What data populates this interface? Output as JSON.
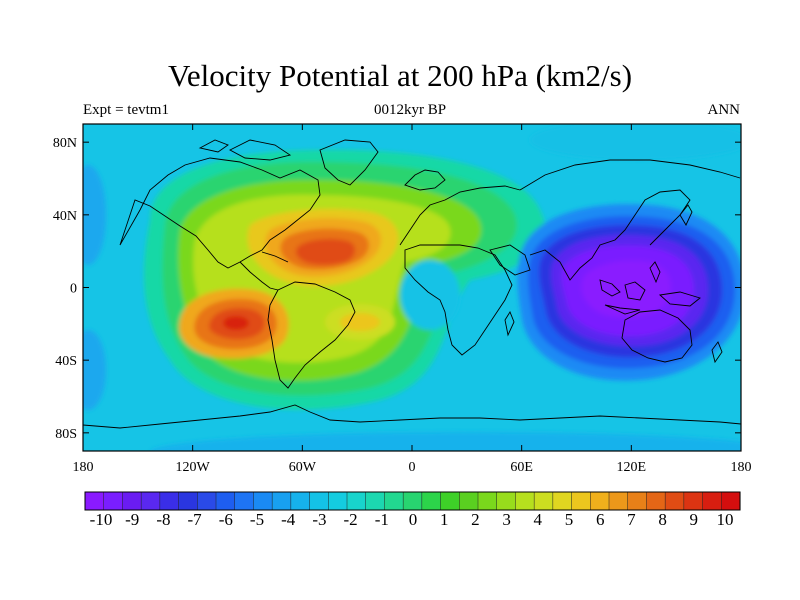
{
  "title": "Velocity Potential at 200 hPa (km2/s)",
  "subtitle_left": "Expt = tevtm1",
  "subtitle_center": "0012kyr BP",
  "subtitle_right": "ANN",
  "lat_ticks": [
    {
      "value": 80,
      "label": "80N"
    },
    {
      "value": 40,
      "label": "40N"
    },
    {
      "value": 0,
      "label": "0"
    },
    {
      "value": -40,
      "label": "40S"
    },
    {
      "value": -80,
      "label": "80S"
    }
  ],
  "lon_ticks": [
    {
      "value": -180,
      "label": "180"
    },
    {
      "value": -120,
      "label": "120W"
    },
    {
      "value": -60,
      "label": "60W"
    },
    {
      "value": 0,
      "label": "0"
    },
    {
      "value": 60,
      "label": "60E"
    },
    {
      "value": 120,
      "label": "120E"
    },
    {
      "value": 180,
      "label": "180"
    }
  ],
  "colorbar": {
    "labels": [
      "-10",
      "-9",
      "-8",
      "-7",
      "-6",
      "-5",
      "-4",
      "-3",
      "-2",
      "-1",
      "0",
      "1",
      "2",
      "3",
      "4",
      "5",
      "6",
      "7",
      "8",
      "9",
      "10"
    ],
    "colors": [
      "#8a1aff",
      "#7a1eff",
      "#6a1cf2",
      "#5a28f0",
      "#3a2ee8",
      "#2a36e0",
      "#2a4ae8",
      "#1e5ef0",
      "#1e74f4",
      "#1a8af4",
      "#18a0f0",
      "#16b2ec",
      "#14c2e6",
      "#14cce0",
      "#18d4cc",
      "#1cd8b0",
      "#22d890",
      "#28d470",
      "#2cd44a",
      "#3ed028",
      "#5ad020",
      "#7ad81c",
      "#98dc1c",
      "#b6e01e",
      "#ccde20",
      "#e0d620",
      "#ecc61e",
      "#f0b01c",
      "#ec981a",
      "#e88018",
      "#e46616",
      "#e04c14",
      "#dc3412",
      "#d81e10",
      "#d40e0e"
    ]
  },
  "map_data": {
    "projection": "cylindrical-equidistant",
    "lon_range": [
      -180,
      180
    ],
    "lat_range": [
      -90,
      90
    ],
    "field": "velocity potential at 200 hPa",
    "units": "km2/s",
    "value_range": [
      -10,
      10
    ],
    "centers": [
      {
        "lon": -50,
        "lat": 17,
        "value": 9.8
      },
      {
        "lon": -97,
        "lat": -22,
        "value": 9.6
      },
      {
        "lon": -30,
        "lat": -20,
        "value": 7.5
      },
      {
        "lon": 110,
        "lat": 0,
        "value": -10.5
      }
    ]
  }
}
